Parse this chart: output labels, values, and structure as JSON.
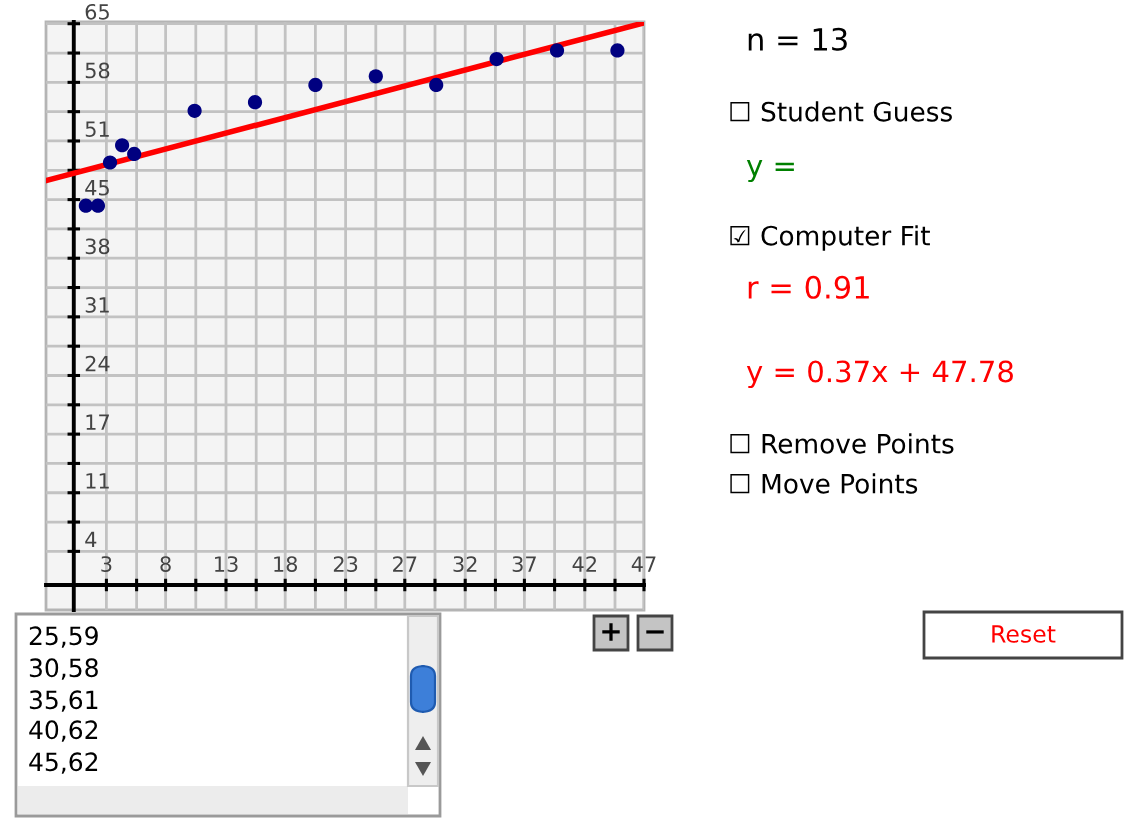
{
  "chart_data": {
    "type": "scatter",
    "series": [
      {
        "color": "#000080",
        "marker": "circle",
        "x": [
          1,
          2,
          3,
          4,
          5,
          10,
          15,
          20,
          25,
          30,
          35,
          40,
          45
        ],
        "values": [
          44,
          44,
          49,
          51,
          50,
          55,
          56,
          58,
          59,
          58,
          61,
          62,
          62
        ]
      },
      {
        "type": "line",
        "color": "#ff0000",
        "line_style": "solid",
        "x": [
          -2.3,
          47.2
        ],
        "values": [
          46.9,
          65.2
        ]
      }
    ],
    "xlim": [
      -2.3,
      47.2
    ],
    "ylim": [
      -2.9,
      65.3
    ],
    "xticks": [
      {
        "value": 2.7,
        "label": "3"
      },
      {
        "value": 5.2,
        "label": null
      },
      {
        "value": 7.6,
        "label": "8"
      },
      {
        "value": 10.1,
        "label": null
      },
      {
        "value": 12.6,
        "label": "13"
      },
      {
        "value": 15.1,
        "label": null
      },
      {
        "value": 17.5,
        "label": "18"
      },
      {
        "value": 20.0,
        "label": null
      },
      {
        "value": 22.5,
        "label": "23"
      },
      {
        "value": 25.0,
        "label": null
      },
      {
        "value": 27.4,
        "label": "27"
      },
      {
        "value": 29.9,
        "label": null
      },
      {
        "value": 32.4,
        "label": "32"
      },
      {
        "value": 34.9,
        "label": null
      },
      {
        "value": 37.3,
        "label": "37"
      },
      {
        "value": 39.8,
        "label": null
      },
      {
        "value": 42.3,
        "label": "42"
      },
      {
        "value": 44.8,
        "label": null
      },
      {
        "value": 47.2,
        "label": "47"
      }
    ],
    "yticks": [
      {
        "value": 3.9,
        "label": "4"
      },
      {
        "value": 7.3,
        "label": null
      },
      {
        "value": 10.7,
        "label": "11"
      },
      {
        "value": 14.1,
        "label": null
      },
      {
        "value": 17.5,
        "label": "17"
      },
      {
        "value": 20.9,
        "label": null
      },
      {
        "value": 24.3,
        "label": "24"
      },
      {
        "value": 27.7,
        "label": null
      },
      {
        "value": 31.1,
        "label": "31"
      },
      {
        "value": 34.5,
        "label": null
      },
      {
        "value": 37.9,
        "label": "38"
      },
      {
        "value": 41.3,
        "label": null
      },
      {
        "value": 44.7,
        "label": "45"
      },
      {
        "value": 48.1,
        "label": null
      },
      {
        "value": 51.5,
        "label": "51"
      },
      {
        "value": 54.9,
        "label": null
      },
      {
        "value": 58.3,
        "label": "58"
      },
      {
        "value": 61.7,
        "label": null
      },
      {
        "value": 65.1,
        "label": "65"
      }
    ],
    "grid": true,
    "annotations": [
      "n = 13",
      "☐ Student Guess",
      "y =",
      "☑ Computer Fit",
      "r = 0.91",
      "y = 0.37x + 47.78",
      "☐ Remove Points",
      "☐ Move Points",
      "25,59",
      "30,58",
      "35,61",
      "40,62",
      "45,62",
      "+",
      "−",
      "Reset"
    ]
  }
}
